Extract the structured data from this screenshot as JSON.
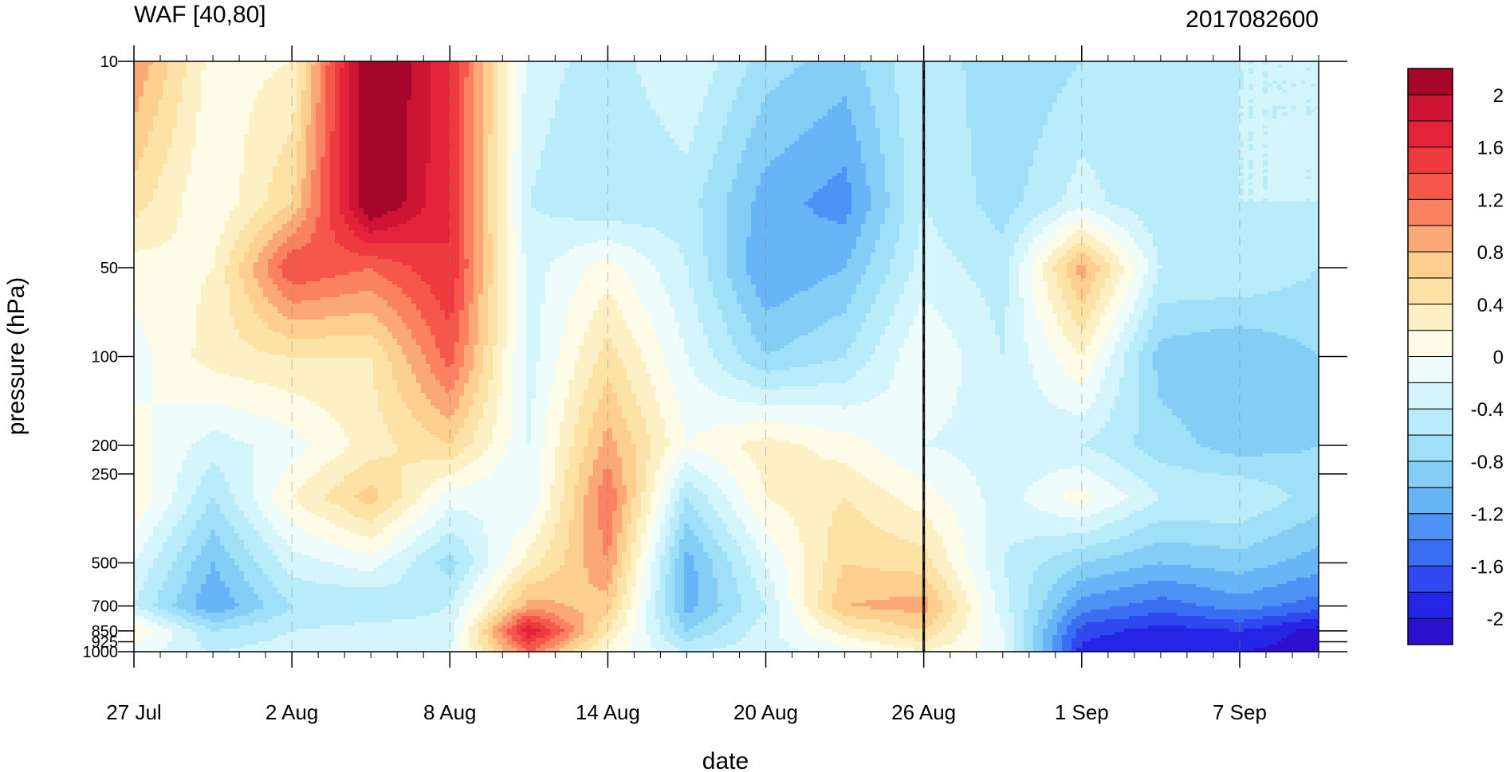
{
  "chart_data": {
    "type": "heatmap",
    "title_left": "WAF [40,80]",
    "title_right": "2017082600",
    "xlabel": "date",
    "ylabel": "pressure (hPa)",
    "x_ticks": [
      "27 Jul",
      "2 Aug",
      "8 Aug",
      "14 Aug",
      "20 Aug",
      "26 Aug",
      "1 Sep",
      "7 Sep"
    ],
    "x_range": [
      "2017-07-27",
      "2017-09-10"
    ],
    "y_ticks": [
      10,
      50,
      100,
      200,
      250,
      500,
      700,
      850,
      925,
      1000
    ],
    "y_scale": "log",
    "y_range": [
      1000,
      10
    ],
    "marked_date": "2017-08-26",
    "colorbar": {
      "levels": [
        -2.2,
        -2,
        -1.8,
        -1.6,
        -1.4,
        -1.2,
        -1,
        -0.8,
        -0.6,
        -0.4,
        -0.2,
        0,
        0.2,
        0.4,
        0.6,
        0.8,
        1,
        1.2,
        1.4,
        1.6,
        1.8,
        2,
        2.2
      ],
      "labels": [
        "2",
        "1.6",
        "1.2",
        "0.8",
        "0.4",
        "0",
        "-0.4",
        "-0.8",
        "-1.2",
        "-1.6",
        "-2"
      ],
      "colors": [
        "#2d0fd0",
        "#2525e6",
        "#2f48f0",
        "#3a6ef2",
        "#4e92f5",
        "#69b4f7",
        "#84cdf7",
        "#9fdff8",
        "#b8ecfa",
        "#d4f5fb",
        "#eefcfc",
        "#fefbe6",
        "#fdf0c4",
        "#fde2a6",
        "#fccf8e",
        "#fba877",
        "#fa8260",
        "#f5584a",
        "#ee3a3e",
        "#e4223a",
        "#cd1434",
        "#a5062a"
      ]
    },
    "x_dates": [
      "2017-07-27",
      "2017-07-30",
      "2017-08-02",
      "2017-08-05",
      "2017-08-08",
      "2017-08-11",
      "2017-08-14",
      "2017-08-17",
      "2017-08-20",
      "2017-08-23",
      "2017-08-26",
      "2017-08-29",
      "2017-09-01",
      "2017-09-04",
      "2017-09-07",
      "2017-09-10"
    ],
    "y_levels": [
      10,
      30,
      50,
      100,
      200,
      300,
      500,
      700,
      850,
      1000
    ],
    "values": [
      [
        1.0,
        0.1,
        0.2,
        2.4,
        1.6,
        -0.3,
        -0.5,
        -0.2,
        -0.7,
        -0.9,
        -0.4,
        -0.8,
        -0.6,
        -0.6,
        -0.4,
        -0.4
      ],
      [
        0.5,
        0.0,
        0.6,
        2.3,
        1.6,
        -0.4,
        -0.6,
        -0.5,
        -1.1,
        -1.3,
        -0.4,
        -0.7,
        -0.3,
        -0.6,
        -0.4,
        -0.4
      ],
      [
        0.1,
        0.2,
        1.4,
        1.2,
        1.6,
        -0.3,
        0.1,
        -0.4,
        -1.2,
        -1.0,
        -0.3,
        -0.5,
        0.9,
        -0.4,
        -0.4,
        -0.6
      ],
      [
        -0.1,
        0.3,
        0.4,
        0.4,
        1.3,
        -0.3,
        0.5,
        -0.2,
        -0.8,
        -0.6,
        0.0,
        -0.4,
        0.2,
        -0.9,
        -1.0,
        -0.8
      ],
      [
        0.1,
        -0.3,
        -0.1,
        0.3,
        0.6,
        -0.2,
        0.9,
        0.0,
        0.3,
        0.1,
        -0.2,
        -0.3,
        -0.4,
        -0.7,
        -0.9,
        -0.8
      ],
      [
        0.2,
        -0.6,
        0.2,
        0.7,
        -0.1,
        -0.2,
        1.2,
        -0.6,
        0.2,
        0.4,
        0.1,
        -0.3,
        0.1,
        -0.4,
        -0.4,
        -0.7
      ],
      [
        -0.2,
        -1.0,
        -0.3,
        -0.1,
        -0.7,
        0.3,
        1.0,
        -1.1,
        -0.2,
        0.6,
        0.5,
        -0.4,
        -0.8,
        -1.0,
        -0.9,
        -1.1
      ],
      [
        -0.4,
        -1.2,
        -0.6,
        -0.6,
        -0.4,
        0.9,
        0.7,
        -1.1,
        -0.4,
        0.8,
        0.9,
        -0.3,
        -1.3,
        -1.5,
        -1.3,
        -1.5
      ],
      [
        0.2,
        -0.6,
        -0.4,
        -0.3,
        -0.3,
        1.8,
        0.4,
        -0.8,
        -0.3,
        0.3,
        0.6,
        -0.2,
        -1.7,
        -1.9,
        -1.8,
        -2.1
      ],
      [
        -0.1,
        -0.4,
        -0.3,
        -0.2,
        -0.2,
        1.2,
        0.1,
        -0.4,
        -0.3,
        -0.1,
        0.2,
        -0.1,
        -1.9,
        -2.0,
        -2.0,
        -2.1
      ]
    ]
  }
}
